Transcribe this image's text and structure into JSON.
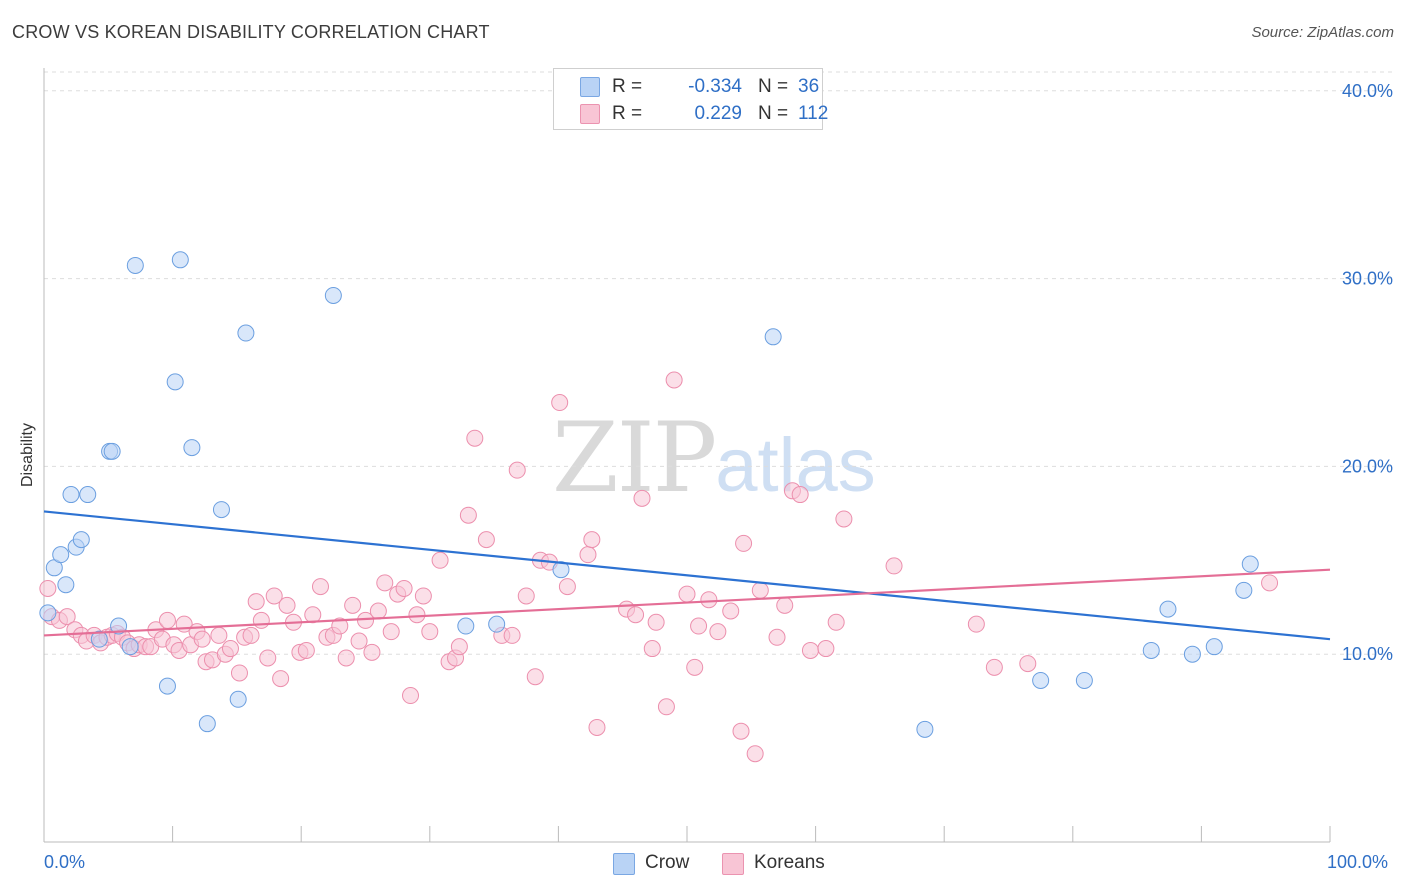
{
  "header": {
    "title": "CROW VS KOREAN DISABILITY CORRELATION CHART",
    "source": "Source: ZipAtlas.com"
  },
  "watermark": {
    "zip": "ZIP",
    "atlas": "atlas"
  },
  "legend": {
    "rows": [
      {
        "swatch_fill": "#b9d3f5",
        "swatch_stroke": "#7aa7e3",
        "r_label": "R =",
        "r_value": "-0.334",
        "n_label": "N =",
        "n_value": "36"
      },
      {
        "swatch_fill": "#f8c5d5",
        "swatch_stroke": "#eb93b0",
        "r_label": "R =",
        "r_value": "0.229",
        "n_label": "N =",
        "n_value": "112"
      }
    ]
  },
  "bottom_legend": {
    "crow": "Crow",
    "koreans": "Koreans"
  },
  "colors": {
    "crow_fill": "#b9d3f5",
    "crow_stroke": "#6b9fe0",
    "crow_line": "#2d72d2",
    "korean_fill": "#f8c5d5",
    "korean_stroke": "#ec8fad",
    "korean_line": "#e46e96",
    "tick_text": "#2f6fc6",
    "grid": "#dddddd",
    "axis": "#bbbbbb"
  },
  "chart_data": {
    "type": "scatter",
    "title": "CROW VS KOREAN DISABILITY CORRELATION CHART",
    "xlabel": "",
    "ylabel": "Disability",
    "xlim": [
      0,
      100
    ],
    "ylim": [
      0,
      41
    ],
    "x_tick_labels": [
      "0.0%",
      "100.0%"
    ],
    "y_ticks": [
      10,
      20,
      30,
      40
    ],
    "y_tick_labels": [
      "10.0%",
      "20.0%",
      "30.0%",
      "40.0%"
    ],
    "grid": true,
    "legend_position": "top-center",
    "series": [
      {
        "name": "Crow",
        "r": -0.334,
        "n": 36,
        "trend": {
          "x": [
            0,
            100
          ],
          "y": [
            17.6,
            10.8
          ]
        },
        "points": [
          [
            0.3,
            12.2
          ],
          [
            0.8,
            14.6
          ],
          [
            1.3,
            15.3
          ],
          [
            1.7,
            13.7
          ],
          [
            2.1,
            18.5
          ],
          [
            2.5,
            15.7
          ],
          [
            2.9,
            16.1
          ],
          [
            3.4,
            18.5
          ],
          [
            4.3,
            10.8
          ],
          [
            5.1,
            20.8
          ],
          [
            5.3,
            20.8
          ],
          [
            5.8,
            11.5
          ],
          [
            6.7,
            10.4
          ],
          [
            7.1,
            30.7
          ],
          [
            9.6,
            8.3
          ],
          [
            10.2,
            24.5
          ],
          [
            10.6,
            31.0
          ],
          [
            11.5,
            21.0
          ],
          [
            12.7,
            6.3
          ],
          [
            13.8,
            17.7
          ],
          [
            15.1,
            7.6
          ],
          [
            15.7,
            27.1
          ],
          [
            22.5,
            29.1
          ],
          [
            32.8,
            11.5
          ],
          [
            35.2,
            11.6
          ],
          [
            40.2,
            14.5
          ],
          [
            56.7,
            26.9
          ],
          [
            68.5,
            6.0
          ],
          [
            77.5,
            8.6
          ],
          [
            80.9,
            8.6
          ],
          [
            86.1,
            10.2
          ],
          [
            87.4,
            12.4
          ],
          [
            89.3,
            10.0
          ],
          [
            91.0,
            10.4
          ],
          [
            93.3,
            13.4
          ],
          [
            93.8,
            14.8
          ]
        ]
      },
      {
        "name": "Koreans",
        "r": 0.229,
        "n": 112,
        "trend": {
          "x": [
            0,
            100
          ],
          "y": [
            11.0,
            14.5
          ]
        },
        "points": [
          [
            0.3,
            13.5
          ],
          [
            0.6,
            12.0
          ],
          [
            1.2,
            11.8
          ],
          [
            1.8,
            12.0
          ],
          [
            2.4,
            11.3
          ],
          [
            2.9,
            11.0
          ],
          [
            3.3,
            10.7
          ],
          [
            3.9,
            11.0
          ],
          [
            4.4,
            10.6
          ],
          [
            4.9,
            10.9
          ],
          [
            5.3,
            11.0
          ],
          [
            5.7,
            11.1
          ],
          [
            6.1,
            10.9
          ],
          [
            6.5,
            10.6
          ],
          [
            7.0,
            10.3
          ],
          [
            7.4,
            10.5
          ],
          [
            7.9,
            10.4
          ],
          [
            8.3,
            10.4
          ],
          [
            8.7,
            11.3
          ],
          [
            9.2,
            10.8
          ],
          [
            9.6,
            11.8
          ],
          [
            10.1,
            10.5
          ],
          [
            10.5,
            10.2
          ],
          [
            10.9,
            11.6
          ],
          [
            11.4,
            10.5
          ],
          [
            11.9,
            11.2
          ],
          [
            12.3,
            10.8
          ],
          [
            12.6,
            9.6
          ],
          [
            13.1,
            9.7
          ],
          [
            13.6,
            11.0
          ],
          [
            14.1,
            10.0
          ],
          [
            14.5,
            10.3
          ],
          [
            15.2,
            9.0
          ],
          [
            15.6,
            10.9
          ],
          [
            16.1,
            11.0
          ],
          [
            16.5,
            12.8
          ],
          [
            16.9,
            11.8
          ],
          [
            17.4,
            9.8
          ],
          [
            17.9,
            13.1
          ],
          [
            18.4,
            8.7
          ],
          [
            18.9,
            12.6
          ],
          [
            19.4,
            11.7
          ],
          [
            19.9,
            10.1
          ],
          [
            20.4,
            10.2
          ],
          [
            20.9,
            12.1
          ],
          [
            21.5,
            13.6
          ],
          [
            22.0,
            10.9
          ],
          [
            22.5,
            11.0
          ],
          [
            23.0,
            11.5
          ],
          [
            23.5,
            9.8
          ],
          [
            24.0,
            12.6
          ],
          [
            24.5,
            10.7
          ],
          [
            25.0,
            11.8
          ],
          [
            25.5,
            10.1
          ],
          [
            26.0,
            12.3
          ],
          [
            26.5,
            13.8
          ],
          [
            27.0,
            11.2
          ],
          [
            27.5,
            13.2
          ],
          [
            28.0,
            13.5
          ],
          [
            28.5,
            7.8
          ],
          [
            29.0,
            12.1
          ],
          [
            29.5,
            13.1
          ],
          [
            30.0,
            11.2
          ],
          [
            30.8,
            15.0
          ],
          [
            31.5,
            9.6
          ],
          [
            32.0,
            9.8
          ],
          [
            32.3,
            10.4
          ],
          [
            33.0,
            17.4
          ],
          [
            33.5,
            21.5
          ],
          [
            34.4,
            16.1
          ],
          [
            35.6,
            11.0
          ],
          [
            36.4,
            11.0
          ],
          [
            36.8,
            19.8
          ],
          [
            37.5,
            13.1
          ],
          [
            38.2,
            8.8
          ],
          [
            38.6,
            15.0
          ],
          [
            39.3,
            14.9
          ],
          [
            40.1,
            23.4
          ],
          [
            40.7,
            13.6
          ],
          [
            42.3,
            15.3
          ],
          [
            42.6,
            16.1
          ],
          [
            43.0,
            6.1
          ],
          [
            45.3,
            12.4
          ],
          [
            46.0,
            12.1
          ],
          [
            46.5,
            18.3
          ],
          [
            47.3,
            10.3
          ],
          [
            47.6,
            11.7
          ],
          [
            48.4,
            7.2
          ],
          [
            49.0,
            24.6
          ],
          [
            50.0,
            13.2
          ],
          [
            50.6,
            9.3
          ],
          [
            50.9,
            11.5
          ],
          [
            51.7,
            12.9
          ],
          [
            52.4,
            11.2
          ],
          [
            53.4,
            12.3
          ],
          [
            54.2,
            5.9
          ],
          [
            54.4,
            15.9
          ],
          [
            55.3,
            4.7
          ],
          [
            55.7,
            13.4
          ],
          [
            57.0,
            10.9
          ],
          [
            57.6,
            12.6
          ],
          [
            58.2,
            18.7
          ],
          [
            58.8,
            18.5
          ],
          [
            59.6,
            10.2
          ],
          [
            60.8,
            10.3
          ],
          [
            61.6,
            11.7
          ],
          [
            62.2,
            17.2
          ],
          [
            66.1,
            14.7
          ],
          [
            72.5,
            11.6
          ],
          [
            73.9,
            9.3
          ],
          [
            76.5,
            9.5
          ],
          [
            95.3,
            13.8
          ]
        ]
      }
    ]
  }
}
